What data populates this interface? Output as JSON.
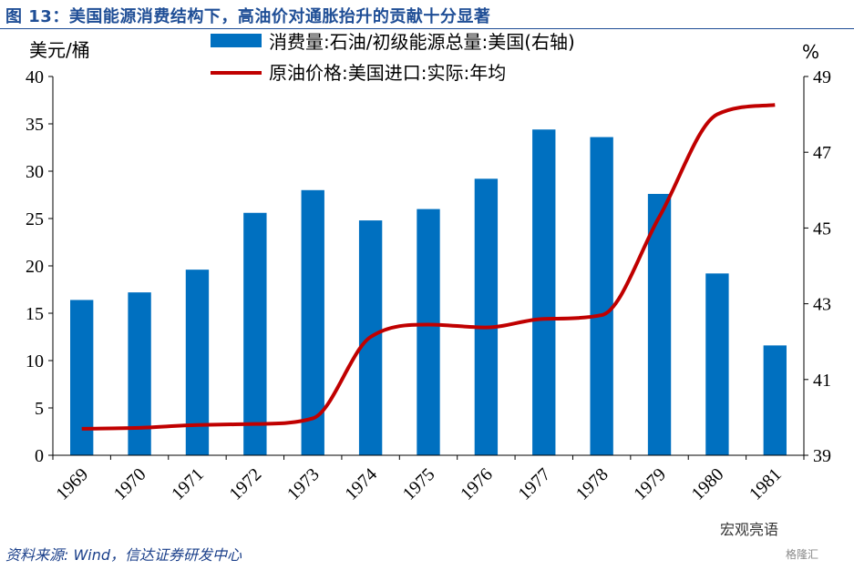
{
  "title": "图 13：美国能源消费结构下，高油价对通胀抬升的贡献十分显著",
  "source": "资料来源: Wind，信达证券研发中心",
  "watermark": {
    "wechat": "宏观亮语",
    "logo": "格隆汇"
  },
  "colors": {
    "bar": "#0070c0",
    "line": "#c00000",
    "title": "#1f4e96",
    "source": "#1a3f8a"
  },
  "chart_data": {
    "type": "bar",
    "categories": [
      "1969",
      "1970",
      "1971",
      "1972",
      "1973",
      "1974",
      "1975",
      "1976",
      "1977",
      "1978",
      "1979",
      "1980",
      "1981"
    ],
    "left_axis": {
      "label": "美元/桶",
      "ylim": [
        0,
        40
      ],
      "ticks": [
        "0",
        "5",
        "10",
        "15",
        "20",
        "25",
        "30",
        "35",
        "40"
      ]
    },
    "right_axis": {
      "label": "%",
      "ylim": [
        39,
        49
      ],
      "ticks": [
        "39",
        "41",
        "43",
        "45",
        "47",
        "49"
      ]
    },
    "series": [
      {
        "name": "消费量:石油/初级能源总量:美国(右轴)",
        "type": "bar",
        "axis": "right",
        "values": [
          43.1,
          43.3,
          43.9,
          45.4,
          46.0,
          45.2,
          45.5,
          46.3,
          47.6,
          47.4,
          45.9,
          43.8,
          41.9
        ]
      },
      {
        "name": "原油价格:美国进口:实际:年均",
        "type": "line",
        "axis": "left",
        "values": [
          2.8,
          2.9,
          3.2,
          3.3,
          3.9,
          12.5,
          13.8,
          13.5,
          14.4,
          14.8,
          25.2,
          36.0,
          37.0
        ]
      }
    ],
    "legend": {
      "position": "top"
    },
    "grid": false
  }
}
